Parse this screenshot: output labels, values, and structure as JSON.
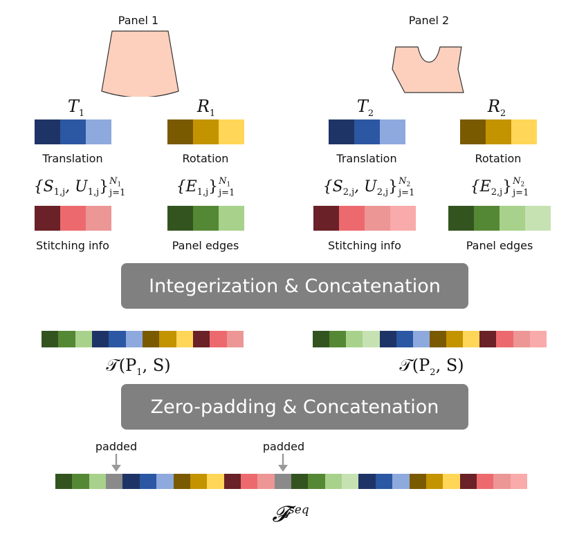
{
  "colors": {
    "translation": [
      "#1f3466",
      "#2b57a3",
      "#8ea9dd"
    ],
    "rotation": [
      "#7a5a00",
      "#c49300",
      "#ffd657"
    ],
    "stitching": [
      "#6a2127",
      "#ec6a6e",
      "#ec9696",
      "#f9aaaa"
    ],
    "edges": [
      "#33541f",
      "#548834",
      "#a8d18b",
      "#c7e2b2"
    ],
    "pad": "#8a8a8a",
    "panel_fill": "#fdd0bd",
    "banner": "#808080"
  },
  "panel1": {
    "title": "Panel 1",
    "T": "T",
    "T_sub": "1",
    "R": "R",
    "R_sub": "1",
    "translation_label": "Translation",
    "rotation_label": "Rotation",
    "S_set": "{S",
    "S_sub": "1,j",
    "U_mid": ", U",
    "U_sub": "1,j",
    "S_close": "}",
    "S_sup": "N",
    "S_sup_sub": "1",
    "S_lower": "j=1",
    "E_set": "{E",
    "E_sub": "1,j",
    "E_close": "}",
    "E_sup": "N",
    "E_sup_sub": "1",
    "E_lower": "j=1",
    "stitching_label": "Stitching info",
    "edges_label": "Panel edges"
  },
  "panel2": {
    "title": "Panel 2",
    "T": "T",
    "T_sub": "2",
    "R": "R",
    "R_sub": "2",
    "translation_label": "Translation",
    "rotation_label": "Rotation",
    "S_set": "{S",
    "S_sub": "2,j",
    "U_mid": ", U",
    "U_sub": "2,j",
    "S_close": "}",
    "S_sup": "N",
    "S_sup_sub": "2",
    "S_lower": "j=1",
    "E_set": "{E",
    "E_sub": "2,j",
    "E_close": "}",
    "E_sup": "N",
    "E_sup_sub": "2",
    "E_lower": "j=1",
    "stitching_label": "Stitching info",
    "edges_label": "Panel edges"
  },
  "banner1": "Integerization & Concatenation",
  "banner2": "Zero-padding & Concatenation",
  "seq1": {
    "label_pre": "𝒯(P",
    "label_sub": "1",
    "label_post": ", S)"
  },
  "seq2": {
    "label_pre": "𝒯(P",
    "label_sub": "2",
    "label_post": ", S)"
  },
  "padded1": "padded",
  "padded2": "padded",
  "final": {
    "label": "𝓕",
    "label_sup": "seq"
  }
}
